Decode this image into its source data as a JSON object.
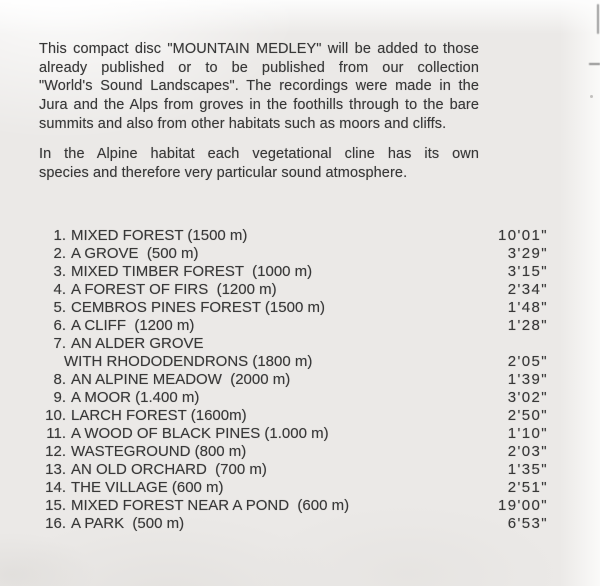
{
  "page": {
    "kind": "scanned CD booklet page",
    "paper_color": "#ebe9e7",
    "highlight_color": "#fdfdfd",
    "text_color": "#383838"
  },
  "intro": {
    "p1_lines": [
      "This compact disc \"MOUNTAIN MEDLEY\" will be added to those",
      "already published or to be published from our collection",
      "\"World's Sound Landscapes\". The recordings were made in the",
      "Jura and the Alps from groves in the foothills through to the bare",
      "summits and also from other habitats such as moors and cliffs."
    ],
    "p2_lines": [
      "In the Alpine habitat each vegetational cline has its own",
      "species and therefore very particular sound atmosphere."
    ]
  },
  "track_list": {
    "tracks": [
      {
        "num": "1.",
        "name": "MIXED FOREST (1500 m)",
        "duration": "10'01\""
      },
      {
        "num": "2.",
        "name": "A GROVE  (500 m)",
        "duration": "3'29\""
      },
      {
        "num": "3.",
        "name": "MIXED TIMBER FOREST  (1000 m)",
        "duration": "3'15\""
      },
      {
        "num": "4.",
        "name": "A FOREST OF FIRS  (1200 m)",
        "duration": "2'34\""
      },
      {
        "num": "5.",
        "name": "CEMBROS PINES FOREST (1500 m)",
        "duration": "1'48\""
      },
      {
        "num": "6.",
        "name": "A CLIFF  (1200 m)",
        "duration": "1'28\""
      },
      {
        "num": "7.",
        "name": "AN ALDER GROVE",
        "name_line2": "WITH RHODODENDRONS (1800 m)",
        "duration": "2'05\""
      },
      {
        "num": "8.",
        "name": "AN ALPINE MEADOW  (2000 m)",
        "duration": "1'39\""
      },
      {
        "num": "9.",
        "name": "A MOOR (1.400 m)",
        "duration": "3'02\""
      },
      {
        "num": "10.",
        "name": "LARCH FOREST (1600m)",
        "duration": "2'50\""
      },
      {
        "num": "11.",
        "name": "A WOOD OF BLACK PINES (1.000 m)",
        "duration": "1'10\""
      },
      {
        "num": "12.",
        "name": "WASTEGROUND (800 m)",
        "duration": "2'03\""
      },
      {
        "num": "13.",
        "name": "AN OLD ORCHARD  (700 m)",
        "duration": "1'35\""
      },
      {
        "num": "14.",
        "name": "THE VILLAGE (600 m)",
        "duration": "2'51\""
      },
      {
        "num": "15.",
        "name": "MIXED FOREST NEAR A POND  (600 m)",
        "duration": "19'00\""
      },
      {
        "num": "16.",
        "name": "A PARK  (500 m)",
        "duration": "6'53\""
      }
    ]
  }
}
